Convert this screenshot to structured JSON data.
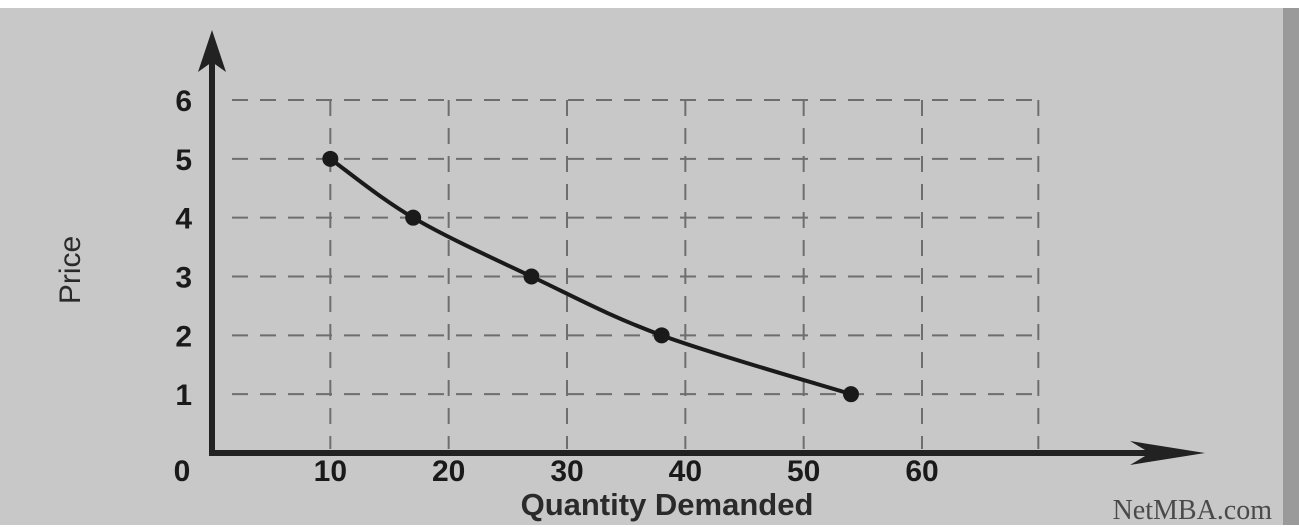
{
  "chart_data": {
    "type": "line",
    "title": "",
    "xlabel": "Quantity Demanded",
    "ylabel": "Price",
    "origin_label": "0",
    "xlim": [
      0,
      70
    ],
    "ylim": [
      0,
      6
    ],
    "x_ticks": [
      10,
      20,
      30,
      40,
      50,
      60
    ],
    "y_ticks": [
      1,
      2,
      3,
      4,
      5,
      6
    ],
    "grid": true,
    "smooth": true,
    "series": [
      {
        "x": [
          10,
          17,
          27,
          38,
          54
        ],
        "y": [
          5,
          4,
          3,
          2,
          1
        ]
      }
    ],
    "credit": "NetMBA.com"
  }
}
